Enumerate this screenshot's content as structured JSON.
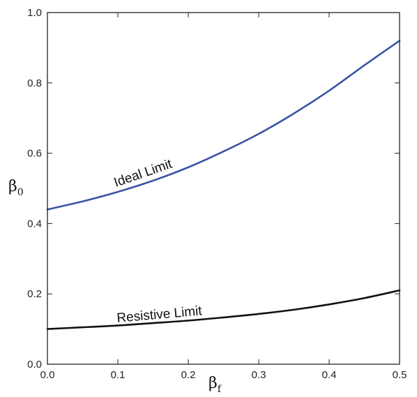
{
  "chart_data": {
    "type": "line",
    "title": "",
    "xlabel": "β",
    "xlabel_sub": "f",
    "ylabel": "β",
    "ylabel_sub": "0",
    "xlim": [
      0.0,
      0.5
    ],
    "ylim": [
      0.0,
      1.0
    ],
    "x_ticks": [
      "0.0",
      "0.1",
      "0.2",
      "0.3",
      "0.4",
      "0.5"
    ],
    "y_ticks": [
      "0.0",
      "0.2",
      "0.4",
      "0.6",
      "0.8",
      "1.0"
    ],
    "grid": false,
    "legend": "none",
    "series": [
      {
        "name": "Ideal Limit",
        "color": "#3a53a4",
        "x": [
          0.0,
          0.05,
          0.1,
          0.15,
          0.2,
          0.25,
          0.3,
          0.35,
          0.4,
          0.45,
          0.5
        ],
        "y": [
          0.44,
          0.463,
          0.49,
          0.522,
          0.56,
          0.605,
          0.655,
          0.713,
          0.778,
          0.85,
          0.92
        ]
      },
      {
        "name": "Resistive Limit",
        "color": "#111111",
        "x": [
          0.0,
          0.05,
          0.1,
          0.15,
          0.2,
          0.25,
          0.3,
          0.35,
          0.4,
          0.45,
          0.5
        ],
        "y": [
          0.1,
          0.105,
          0.11,
          0.117,
          0.124,
          0.133,
          0.143,
          0.155,
          0.17,
          0.188,
          0.21
        ]
      }
    ]
  }
}
